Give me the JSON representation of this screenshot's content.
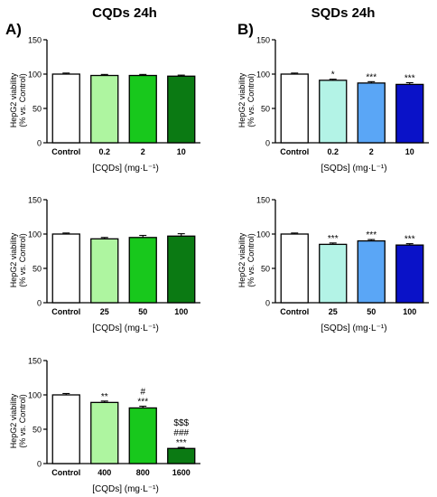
{
  "panels": [
    {
      "letter": "A)",
      "title": "CQDs 24h"
    },
    {
      "letter": "B)",
      "title": "SQDs 24h"
    }
  ],
  "colors": {
    "control": "#ffffff",
    "cqd_light": "#aef5a0",
    "cqd_mid": "#18c81c",
    "cqd_dark": "#0b7a13",
    "sqd_light": "#b3f3e6",
    "sqd_mid": "#5aa6f6",
    "sqd_dark": "#0a12c8"
  },
  "chart_data": [
    {
      "type": "bar",
      "categories": [
        "Control",
        "0.2",
        "2",
        "10"
      ],
      "values": [
        100,
        98,
        98,
        97
      ],
      "errors": [
        1.5,
        1.5,
        1.5,
        1.5
      ],
      "annotations": [
        "",
        "",
        "",
        ""
      ],
      "colors": [
        "#ffffff",
        "#aef5a0",
        "#18c81c",
        "#0b7a13"
      ],
      "xlabel": "[CQDs] (mg·L⁻¹)",
      "ylabel": "HepG2 viability",
      "ylabel2": "(% vs. Control)",
      "yticks": [
        0,
        50,
        100,
        150
      ],
      "ylim": [
        0,
        150
      ]
    },
    {
      "type": "bar",
      "categories": [
        "Control",
        "0.2",
        "2",
        "10"
      ],
      "values": [
        100,
        91,
        87,
        85
      ],
      "errors": [
        1.5,
        1.5,
        2,
        2.5
      ],
      "annotations": [
        "",
        "*",
        "***",
        "***"
      ],
      "colors": [
        "#ffffff",
        "#b3f3e6",
        "#5aa6f6",
        "#0a12c8"
      ],
      "xlabel": "[SQDs] (mg·L⁻¹)",
      "ylabel": "HepG2 viability",
      "ylabel2": "(% vs. Control)",
      "yticks": [
        0,
        50,
        100,
        150
      ],
      "ylim": [
        0,
        150
      ]
    },
    {
      "type": "bar",
      "categories": [
        "Control",
        "25",
        "50",
        "100"
      ],
      "values": [
        100,
        93,
        95,
        97
      ],
      "errors": [
        1.5,
        2,
        3,
        3.5
      ],
      "annotations": [
        "",
        "",
        "",
        ""
      ],
      "colors": [
        "#ffffff",
        "#aef5a0",
        "#18c81c",
        "#0b7a13"
      ],
      "xlabel": "[CQDs] (mg·L⁻¹)",
      "ylabel": "HepG2 viability",
      "ylabel2": "(% vs. Control)",
      "yticks": [
        0,
        50,
        100,
        150
      ],
      "ylim": [
        0,
        150
      ]
    },
    {
      "type": "bar",
      "categories": [
        "Control",
        "25",
        "50",
        "100"
      ],
      "values": [
        100,
        85,
        90,
        84
      ],
      "errors": [
        1.5,
        2,
        2,
        2
      ],
      "annotations": [
        "",
        "***",
        "***",
        "***"
      ],
      "colors": [
        "#ffffff",
        "#b3f3e6",
        "#5aa6f6",
        "#0a12c8"
      ],
      "xlabel": "[SQDs] (mg·L⁻¹)",
      "ylabel": "HepG2 viability",
      "ylabel2": "(% vs. Control)",
      "yticks": [
        0,
        50,
        100,
        150
      ],
      "ylim": [
        0,
        150
      ]
    },
    {
      "type": "bar",
      "categories": [
        "Control",
        "400",
        "800",
        "1600"
      ],
      "values": [
        100,
        89,
        81,
        22
      ],
      "errors": [
        2,
        2,
        2.5,
        1.5
      ],
      "annotations": [
        "",
        "**",
        "#\n***",
        "$$$\n###\n***"
      ],
      "colors": [
        "#ffffff",
        "#aef5a0",
        "#18c81c",
        "#0b7a13"
      ],
      "xlabel": "[CQDs] (mg·L⁻¹)",
      "ylabel": "HepG2 viability",
      "ylabel2": "(% vs. Control)",
      "yticks": [
        0,
        50,
        100,
        150
      ],
      "ylim": [
        0,
        150
      ]
    }
  ]
}
